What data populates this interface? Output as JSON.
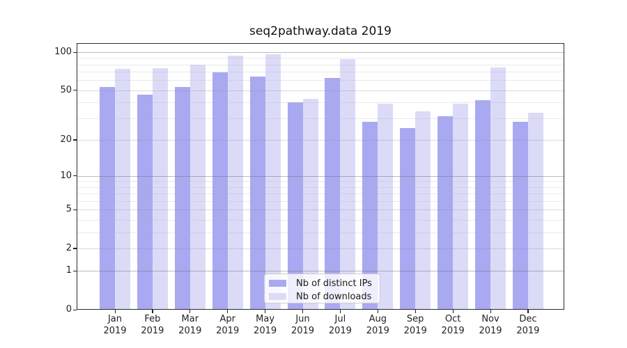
{
  "figure": {
    "background": "#ffffff"
  },
  "chart_data": {
    "type": "bar",
    "title": "seq2pathway.data 2019",
    "categories": [
      "Jan",
      "Feb",
      "Mar",
      "Apr",
      "May",
      "Jun",
      "Jul",
      "Aug",
      "Sep",
      "Oct",
      "Nov",
      "Dec"
    ],
    "year": "2019",
    "series": [
      {
        "name": "Nb of distinct IPs",
        "color": "#a9a9f2",
        "values": [
          53,
          46,
          53,
          69,
          64,
          40,
          63,
          28,
          25,
          31,
          42,
          28
        ]
      },
      {
        "name": "Nb of downloads",
        "color": "#dbdbf8",
        "values": [
          74,
          75,
          80,
          94,
          96,
          43,
          88,
          39,
          34,
          39,
          76,
          33
        ]
      }
    ],
    "xlabel": "",
    "ylabel": "",
    "yscale": "log1p",
    "ylim": [
      0,
      118
    ],
    "yticks": [
      0,
      1,
      2,
      5,
      10,
      20,
      50,
      100
    ],
    "grid": {
      "major_values": [
        1,
        10,
        100
      ],
      "ticked_minor_values": [
        2,
        5,
        20,
        50
      ],
      "minor_values": [
        3,
        4,
        6,
        7,
        8,
        9,
        30,
        40,
        60,
        70,
        80,
        90
      ],
      "on": true
    },
    "legend": {
      "position": "lower-center"
    }
  }
}
